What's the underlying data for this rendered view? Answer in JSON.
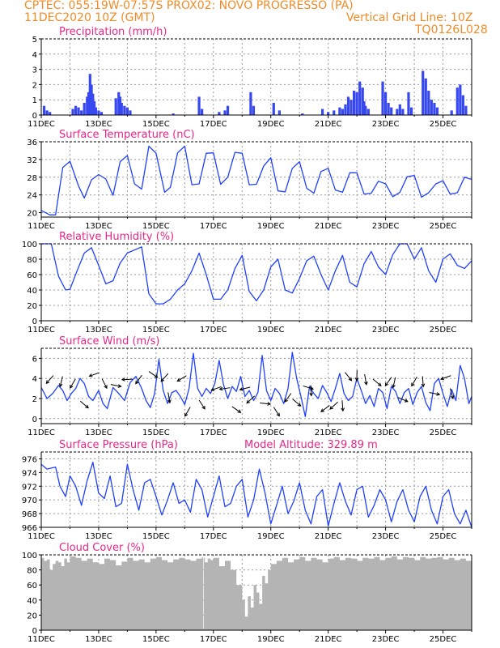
{
  "header": {
    "line1": "CPTEC:   055:19W-07:57S   PROX02: NOVO PROGRESSO (PA)",
    "line2_left": "11DEC2020 10Z (GMT)",
    "line2_right": "Vertical Grid Line: 10Z",
    "line3_right": "TQ0126L028"
  },
  "colors": {
    "header": "#f08c28",
    "title": "#e8268a",
    "line": "#2040ff",
    "bar": "#3848f0",
    "cloud": "#b4b4b4",
    "arrow": "#000000",
    "grid": "#9a9a9a"
  },
  "chart_data": [
    {
      "id": "precip",
      "type": "bar",
      "title": "Precipitation (mm/h)",
      "x_tick_labels": [
        "11DEC",
        "13DEC",
        "15DEC",
        "17DEC",
        "19DEC",
        "21DEC",
        "23DEC",
        "25DEC"
      ],
      "x_range_days": [
        0,
        15
      ],
      "ylim": [
        0,
        5
      ],
      "yticks": [
        0,
        1,
        2,
        3,
        4,
        5
      ],
      "bars": [
        [
          0.1,
          0.6
        ],
        [
          0.2,
          0.3
        ],
        [
          0.3,
          0.2
        ],
        [
          1.1,
          0.4
        ],
        [
          1.2,
          0.6
        ],
        [
          1.3,
          0.5
        ],
        [
          1.4,
          0.3
        ],
        [
          1.5,
          0.8
        ],
        [
          1.6,
          1.2
        ],
        [
          1.65,
          1.5
        ],
        [
          1.7,
          2.7
        ],
        [
          1.75,
          2.0
        ],
        [
          1.8,
          1.4
        ],
        [
          1.85,
          0.9
        ],
        [
          1.9,
          0.5
        ],
        [
          2.0,
          0.3
        ],
        [
          2.1,
          0.2
        ],
        [
          2.6,
          1.1
        ],
        [
          2.7,
          1.5
        ],
        [
          2.75,
          1.2
        ],
        [
          2.8,
          0.8
        ],
        [
          2.9,
          0.6
        ],
        [
          3.0,
          0.5
        ],
        [
          3.1,
          0.3
        ],
        [
          4.6,
          0.1
        ],
        [
          5.5,
          1.2
        ],
        [
          5.6,
          0.4
        ],
        [
          6.2,
          0.2
        ],
        [
          6.4,
          0.3
        ],
        [
          6.5,
          0.6
        ],
        [
          7.3,
          1.5
        ],
        [
          7.4,
          0.6
        ],
        [
          8.1,
          0.8
        ],
        [
          8.3,
          0.3
        ],
        [
          9.1,
          0.1
        ],
        [
          9.8,
          0.4
        ],
        [
          10.0,
          0.2
        ],
        [
          10.2,
          0.3
        ],
        [
          10.4,
          0.5
        ],
        [
          10.5,
          0.4
        ],
        [
          10.6,
          0.7
        ],
        [
          10.7,
          1.2
        ],
        [
          10.8,
          1.0
        ],
        [
          10.9,
          1.6
        ],
        [
          11.0,
          1.5
        ],
        [
          11.1,
          2.2
        ],
        [
          11.2,
          1.8
        ],
        [
          11.25,
          0.9
        ],
        [
          11.3,
          0.6
        ],
        [
          11.4,
          0.4
        ],
        [
          11.9,
          2.2
        ],
        [
          12.0,
          1.5
        ],
        [
          12.1,
          0.8
        ],
        [
          12.2,
          0.5
        ],
        [
          12.4,
          0.4
        ],
        [
          12.5,
          0.7
        ],
        [
          12.6,
          0.4
        ],
        [
          12.8,
          1.5
        ],
        [
          12.9,
          0.5
        ],
        [
          13.3,
          2.9
        ],
        [
          13.4,
          2.4
        ],
        [
          13.5,
          1.6
        ],
        [
          13.6,
          1.0
        ],
        [
          13.7,
          0.8
        ],
        [
          13.8,
          0.5
        ],
        [
          14.3,
          0.3
        ],
        [
          14.5,
          1.8
        ],
        [
          14.6,
          2.0
        ],
        [
          14.7,
          1.3
        ],
        [
          14.8,
          0.6
        ]
      ]
    },
    {
      "id": "temp",
      "type": "line",
      "title": "Surface Temperature (nC)",
      "x_tick_labels": [
        "11DEC",
        "13DEC",
        "15DEC",
        "17DEC",
        "19DEC",
        "21DEC",
        "23DEC",
        "25DEC"
      ],
      "x_range_days": [
        0,
        15
      ],
      "ylim": [
        19,
        36
      ],
      "yticks": [
        20,
        24,
        28,
        32,
        36
      ],
      "x": [
        0,
        0.3,
        0.5,
        0.75,
        1,
        1.3,
        1.5,
        1.75,
        2,
        2.25,
        2.5,
        2.75,
        3,
        3.25,
        3.5,
        3.75,
        4,
        4.3,
        4.5,
        4.75,
        5,
        5.25,
        5.5,
        5.75,
        6,
        6.25,
        6.5,
        6.75,
        7,
        7.25,
        7.5,
        7.75,
        8,
        8.25,
        8.5,
        8.75,
        9,
        9.25,
        9.5,
        9.75,
        10,
        10.25,
        10.5,
        10.75,
        11,
        11.25,
        11.5,
        11.75,
        12,
        12.25,
        12.5,
        12.75,
        13,
        13.25,
        13.5,
        13.75,
        14,
        14.25,
        14.5,
        14.75,
        15
      ],
      "y": [
        20.5,
        19.5,
        19.5,
        30.2,
        31.6,
        26.0,
        23.3,
        27.4,
        28.6,
        27.6,
        23.9,
        31.5,
        32.9,
        26.5,
        25.3,
        35.0,
        33.4,
        24.6,
        25.7,
        33.5,
        35.0,
        26.3,
        26.5,
        33.4,
        33.5,
        26.4,
        28.0,
        33.6,
        33.4,
        26.3,
        26.4,
        30.5,
        32.4,
        24.9,
        24.7,
        30.0,
        31.5,
        25.5,
        24.4,
        29.3,
        30.0,
        25.1,
        24.6,
        29.0,
        29.0,
        24.2,
        24.4,
        27.1,
        26.5,
        23.6,
        24.6,
        28.1,
        28.4,
        23.5,
        24.5,
        26.5,
        27.2,
        24.2,
        24.5,
        28.0,
        27.5
      ]
    },
    {
      "id": "rh",
      "type": "line",
      "title": "Relative Humidity (%)",
      "x_tick_labels": [
        "11DEC",
        "13DEC",
        "15DEC",
        "17DEC",
        "19DEC",
        "21DEC",
        "23DEC",
        "25DEC"
      ],
      "x_range_days": [
        0,
        15
      ],
      "ylim": [
        0,
        100
      ],
      "yticks": [
        0,
        20,
        40,
        60,
        80,
        100
      ],
      "x": [
        0,
        0.35,
        0.6,
        0.85,
        1,
        1.25,
        1.5,
        1.75,
        2,
        2.25,
        2.5,
        2.75,
        3,
        3.5,
        3.75,
        4,
        4.25,
        4.5,
        4.75,
        5,
        5.25,
        5.5,
        5.75,
        6,
        6.25,
        6.5,
        6.75,
        7,
        7.25,
        7.5,
        7.75,
        8,
        8.25,
        8.5,
        8.75,
        9,
        9.25,
        9.5,
        9.75,
        10,
        10.25,
        10.5,
        10.75,
        11,
        11.25,
        11.5,
        11.75,
        12,
        12.25,
        12.5,
        12.75,
        13,
        13.25,
        13.5,
        13.75,
        14,
        14.25,
        14.5,
        14.75,
        15
      ],
      "y": [
        100,
        100,
        58,
        40,
        41,
        65,
        88,
        95,
        72,
        48,
        52,
        75,
        88,
        96,
        35,
        22,
        22,
        28,
        40,
        48,
        65,
        88,
        60,
        28,
        28,
        40,
        68,
        85,
        38,
        26,
        40,
        70,
        80,
        40,
        36,
        55,
        78,
        84,
        60,
        40,
        65,
        85,
        50,
        44,
        74,
        90,
        70,
        60,
        86,
        100,
        100,
        80,
        95,
        65,
        50,
        80,
        87,
        72,
        68,
        78
      ]
    },
    {
      "id": "wind",
      "type": "line",
      "title": "Surface Wind (m/s)",
      "x_tick_labels": [
        "11DEC",
        "13DEC",
        "15DEC",
        "17DEC",
        "19DEC",
        "21DEC",
        "23DEC",
        "25DEC"
      ],
      "x_range_days": [
        0,
        15
      ],
      "ylim": [
        -0.5,
        7
      ],
      "yticks": [
        0,
        2,
        4,
        6
      ],
      "x": [
        0,
        0.2,
        0.4,
        0.6,
        0.75,
        0.9,
        1.05,
        1.2,
        1.35,
        1.5,
        1.65,
        1.8,
        2.0,
        2.15,
        2.3,
        2.5,
        2.7,
        2.9,
        3.1,
        3.3,
        3.5,
        3.65,
        3.8,
        3.95,
        4.1,
        4.25,
        4.4,
        4.55,
        4.7,
        4.85,
        5.0,
        5.15,
        5.3,
        5.45,
        5.6,
        5.75,
        5.9,
        6.05,
        6.2,
        6.35,
        6.5,
        6.65,
        6.8,
        6.95,
        7.1,
        7.25,
        7.4,
        7.55,
        7.7,
        7.85,
        8.0,
        8.15,
        8.3,
        8.45,
        8.6,
        8.75,
        8.9,
        9.05,
        9.2,
        9.35,
        9.5,
        9.65,
        9.8,
        9.95,
        10.1,
        10.25,
        10.4,
        10.55,
        10.7,
        10.85,
        11.0,
        11.15,
        11.3,
        11.45,
        11.6,
        11.75,
        11.9,
        12.05,
        12.2,
        12.35,
        12.5,
        12.65,
        12.8,
        12.95,
        13.1,
        13.25,
        13.4,
        13.55,
        13.7,
        13.85,
        14.0,
        14.15,
        14.3,
        14.45,
        14.6,
        14.75,
        14.9,
        15.0
      ],
      "y": [
        3.1,
        2.0,
        2.5,
        3.3,
        2.8,
        1.8,
        2.5,
        3.0,
        4.0,
        3.5,
        2.2,
        1.8,
        2.8,
        1.5,
        1.0,
        3.1,
        2.5,
        1.8,
        3.6,
        4.2,
        3.0,
        1.8,
        1.1,
        2.5,
        5.9,
        2.8,
        1.5,
        2.6,
        2.8,
        2.2,
        1.4,
        3.0,
        6.5,
        3.0,
        2.2,
        3.0,
        2.5,
        3.5,
        5.8,
        3.4,
        2.0,
        3.2,
        2.7,
        4.2,
        2.2,
        2.8,
        1.8,
        2.6,
        6.3,
        2.8,
        1.8,
        3.0,
        2.5,
        1.5,
        3.0,
        6.6,
        4.0,
        2.2,
        0.2,
        3.2,
        2.5,
        2.0,
        3.3,
        2.6,
        1.7,
        3.0,
        4.5,
        2.5,
        1.8,
        2.2,
        4.0,
        2.8,
        1.5,
        2.3,
        1.2,
        3.0,
        2.6,
        1.0,
        3.2,
        2.7,
        1.5,
        2.6,
        3.0,
        1.4,
        2.6,
        3.2,
        1.6,
        0.8,
        3.5,
        4.0,
        2.5,
        1.2,
        2.9,
        1.8,
        5.3,
        4.0,
        1.5,
        2.2
      ]
    },
    {
      "id": "pressure",
      "type": "line",
      "title": "Surface Pressure (hPa)",
      "annotation": "Model Altitude: 329.89 m",
      "x_tick_labels": [
        "11DEC",
        "13DEC",
        "15DEC",
        "17DEC",
        "19DEC",
        "21DEC",
        "23DEC",
        "25DEC"
      ],
      "x_range_days": [
        0,
        15
      ],
      "ylim": [
        966,
        977
      ],
      "yticks": [
        966,
        968,
        970,
        972,
        974,
        976
      ],
      "x": [
        0,
        0.2,
        0.5,
        0.65,
        0.85,
        1.0,
        1.2,
        1.4,
        1.6,
        1.8,
        2.0,
        2.2,
        2.4,
        2.6,
        2.8,
        3.0,
        3.2,
        3.4,
        3.6,
        3.8,
        4.0,
        4.2,
        4.4,
        4.6,
        4.8,
        5.0,
        5.2,
        5.4,
        5.6,
        5.8,
        6.0,
        6.2,
        6.4,
        6.6,
        6.8,
        7.0,
        7.2,
        7.4,
        7.6,
        7.8,
        8.0,
        8.2,
        8.4,
        8.6,
        8.8,
        9.0,
        9.2,
        9.4,
        9.6,
        9.8,
        10.0,
        10.2,
        10.4,
        10.6,
        10.8,
        11.0,
        11.2,
        11.4,
        11.6,
        11.8,
        12.0,
        12.2,
        12.4,
        12.6,
        12.8,
        13.0,
        13.2,
        13.4,
        13.6,
        13.8,
        14.0,
        14.2,
        14.4,
        14.6,
        14.8,
        15.0
      ],
      "y": [
        975.2,
        974.5,
        974.8,
        972.0,
        970.5,
        973.5,
        972.0,
        969.2,
        972.8,
        975.5,
        971.0,
        970.2,
        973.5,
        969.0,
        969.5,
        975.2,
        971.5,
        968.5,
        972.5,
        973.0,
        970.5,
        967.8,
        970.0,
        972.5,
        969.5,
        970.0,
        968.2,
        973.0,
        971.5,
        967.5,
        970.5,
        973.5,
        969.0,
        969.5,
        972.0,
        973.0,
        967.5,
        970.0,
        974.5,
        971.0,
        966.5,
        969.2,
        972.0,
        968.0,
        969.8,
        972.5,
        968.5,
        966.5,
        970.5,
        971.5,
        966.2,
        969.5,
        972.5,
        969.8,
        967.8,
        971.5,
        972.0,
        967.5,
        969.2,
        971.5,
        970.0,
        966.8,
        969.8,
        971.5,
        968.5,
        966.8,
        970.5,
        972.0,
        968.5,
        966.5,
        970.5,
        971.5,
        968.0,
        966.5,
        968.5,
        966.0
      ]
    },
    {
      "id": "cloud",
      "type": "area",
      "title": "Cloud Cover (%)",
      "x_tick_labels": [
        "11DEC",
        "13DEC",
        "15DEC",
        "17DEC",
        "19DEC",
        "21DEC",
        "23DEC",
        "25DEC"
      ],
      "x_range_days": [
        0,
        15
      ],
      "ylim": [
        0,
        100
      ],
      "yticks": [
        0,
        20,
        40,
        60,
        80,
        100
      ],
      "x": [
        0,
        0.1,
        0.2,
        0.3,
        0.4,
        0.5,
        0.6,
        0.7,
        0.8,
        0.9,
        1.0,
        1.2,
        1.4,
        1.6,
        1.8,
        2.0,
        2.2,
        2.4,
        2.6,
        2.8,
        3.0,
        3.2,
        3.4,
        3.6,
        3.8,
        4.0,
        4.2,
        4.4,
        4.6,
        4.8,
        5.0,
        5.2,
        5.4,
        5.6,
        5.64,
        5.66,
        5.7,
        5.8,
        5.9,
        6.0,
        6.2,
        6.4,
        6.6,
        6.8,
        7.0,
        7.1,
        7.2,
        7.3,
        7.4,
        7.5,
        7.6,
        7.7,
        7.8,
        7.9,
        8.0,
        8.2,
        8.4,
        8.6,
        8.8,
        9.0,
        9.2,
        9.4,
        9.6,
        9.8,
        10.0,
        10.2,
        10.4,
        10.6,
        10.8,
        11.0,
        11.2,
        11.4,
        11.6,
        11.8,
        12.0,
        12.2,
        12.4,
        12.6,
        12.8,
        13.0,
        13.2,
        13.4,
        13.6,
        13.8,
        14.0,
        14.2,
        14.4,
        14.6,
        14.8,
        15.0
      ],
      "y": [
        96,
        92,
        94,
        80,
        88,
        92,
        90,
        85,
        95,
        90,
        98,
        96,
        92,
        95,
        90,
        88,
        95,
        93,
        86,
        91,
        96,
        92,
        94,
        90,
        95,
        97,
        93,
        90,
        94,
        96,
        94,
        92,
        95,
        97,
        2,
        96,
        90,
        95,
        93,
        96,
        85,
        92,
        80,
        60,
        40,
        18,
        45,
        30,
        60,
        50,
        35,
        72,
        62,
        80,
        88,
        92,
        96,
        90,
        94,
        97,
        92,
        96,
        94,
        90,
        95,
        97,
        93,
        96,
        95,
        92,
        96,
        95,
        97,
        93,
        96,
        98,
        94,
        97,
        96,
        93,
        97,
        95,
        96,
        97,
        94,
        96,
        93,
        95,
        92,
        96
      ]
    }
  ]
}
